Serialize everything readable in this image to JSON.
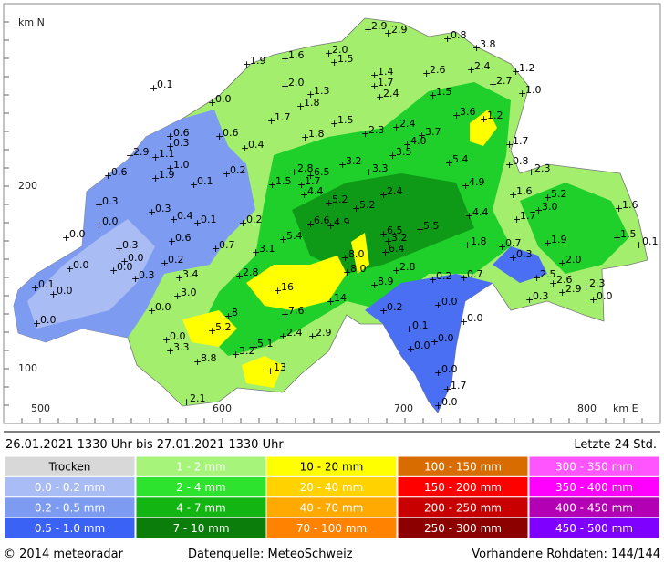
{
  "header": {
    "period": "26.01.2021  1330 Uhr   bis   27.01.2021  1330 Uhr",
    "duration": "Letzte 24 Std."
  },
  "map": {
    "y_axis_label": "km N",
    "y_ticks": [
      "200",
      "100"
    ],
    "x_ticks": [
      "500",
      "600",
      "700",
      "800"
    ],
    "x_axis_label": "km E",
    "stations": [
      "2.9",
      "2.9",
      "0.8",
      "3.8",
      "2.0",
      "1.5",
      "1.6",
      "1.9",
      "1.4",
      "2.6",
      "2.4",
      "1.2",
      "1.7",
      "2.7",
      "1.0",
      "2.0",
      "1.3",
      "2.4",
      "1.5",
      "0.1",
      "0.0",
      "1.8",
      "3.6",
      "1.2",
      "1.7",
      "1.5",
      "2.4",
      "3.7",
      "2.3",
      "1.8",
      "4.0",
      "0.6",
      "0.6",
      "0.3",
      "0.4",
      "1.7",
      "3.5",
      "2.9",
      "1.1",
      "1.0",
      "5.4",
      "0.8",
      "3.2",
      "0.6",
      "1.9",
      "0.2",
      "2.8",
      "6.5",
      "3.3",
      "2.3",
      "0.1",
      "1.5",
      "1.7",
      "4.9",
      "0.3",
      "4.4",
      "2.4",
      "1.6",
      "5.2",
      "5.2",
      "5.2",
      "3.0",
      "1.6",
      "0.3",
      "4.4",
      "1.7",
      "0.0",
      "0.4",
      "0.1",
      "0.2",
      "6.6",
      "4.9",
      "5.5",
      "6.5",
      "0.0",
      "0.6",
      "5.4",
      "3.2",
      "1.5",
      "0.1",
      "0.3",
      "0.7",
      "3.1",
      "6.4",
      "1.8",
      "0.7",
      "1.9",
      "0.0",
      "0.2",
      "8.0",
      "0.3",
      "2.0",
      "0.0",
      "0.0",
      "0.3",
      "3.4",
      "2.8",
      "8.0",
      "2.8",
      "0.2",
      "0.7",
      "2.5",
      "2.6",
      "2.3",
      "0.1",
      "0.0",
      "3.0",
      "16",
      "8.9",
      "2.9",
      "0.0",
      "0.3",
      "14",
      "0.0",
      "0.0",
      "0.2",
      "7.6",
      "8",
      "0.0",
      "0.0",
      "5.2",
      "0.1",
      "2.4",
      "2.9",
      "0.0",
      "0.0",
      "5.1",
      "3.3",
      "3.2",
      "0.0",
      "8.8",
      "13",
      "0.0",
      "1.7",
      "2.1",
      "0.0"
    ]
  },
  "legend": {
    "columns": [
      [
        "Trocken",
        "0.0 - 0.2 mm",
        "0.2 - 0.5 mm",
        "0.5 - 1.0 mm"
      ],
      [
        "1 - 2 mm",
        "2 - 4 mm",
        "4 - 7 mm",
        "7 - 10 mm"
      ],
      [
        "10 - 20 mm",
        "20 - 40 mm",
        "40 - 70 mm",
        "70 - 100 mm"
      ],
      [
        "100 - 150 mm",
        "150 - 200 mm",
        "200 - 250 mm",
        "250 - 300 mm"
      ],
      [
        "300 - 350 mm",
        "350 - 400 mm",
        "400 - 450 mm",
        "450 - 500 mm"
      ]
    ]
  },
  "footer": {
    "copyright": "© 2014  meteoradar",
    "source": "Datenquelle: MeteoSchweiz",
    "raw_data": "Vorhandene Rohdaten: 144/144"
  }
}
